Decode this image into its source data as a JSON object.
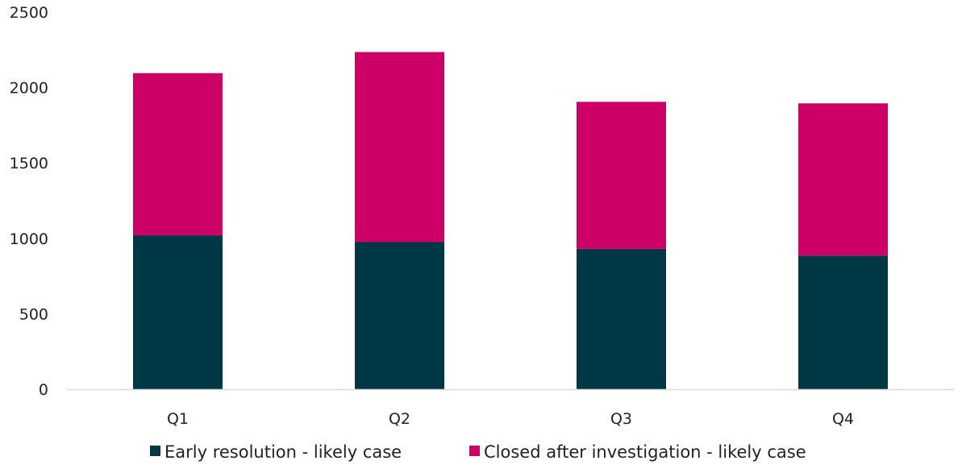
{
  "chart_data": {
    "type": "bar",
    "stacked": true,
    "title": "",
    "xlabel": "",
    "ylabel": "",
    "categories": [
      "Q1",
      "Q2",
      "Q3",
      "Q4"
    ],
    "series": [
      {
        "name": "Early resolution - likely case",
        "color": "#003744",
        "values": [
          1020,
          975,
          930,
          885
        ]
      },
      {
        "name": "Closed after investigation - likely case",
        "color": "#CC0066",
        "values": [
          1075,
          1260,
          975,
          1010
        ]
      }
    ],
    "ylim": [
      0,
      2500
    ],
    "yticks": [
      0,
      500,
      1000,
      1500,
      2000,
      2500
    ],
    "grid": false,
    "legend_position": "bottom"
  }
}
